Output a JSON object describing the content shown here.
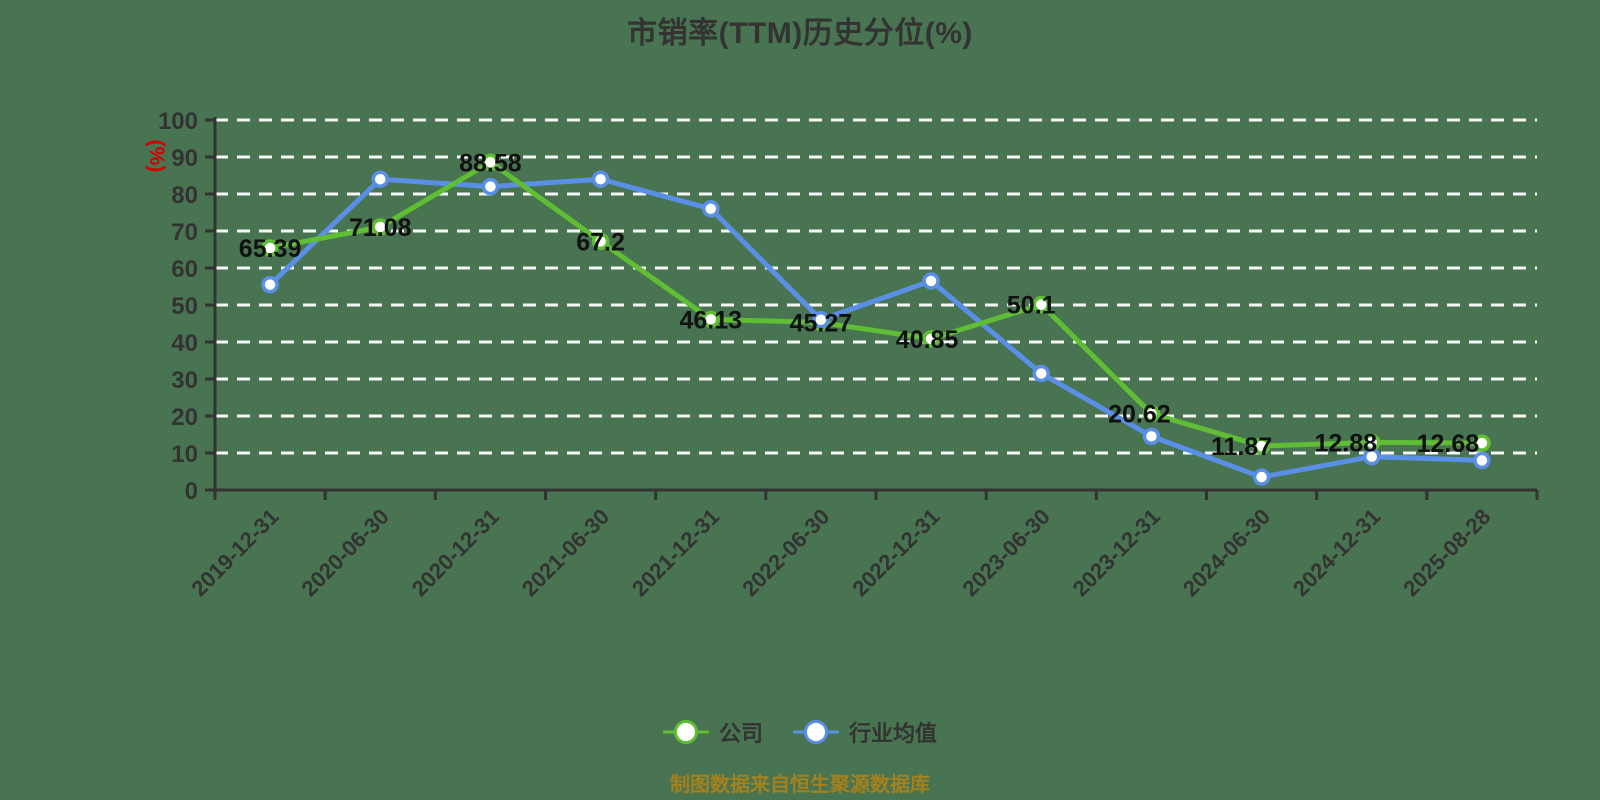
{
  "page": {
    "title": "市销率(TTM)历史分位(%)",
    "source_note": "制图数据来自恒生聚源数据库"
  },
  "y_axis": {
    "unit_label": "(%)"
  },
  "legend": {
    "items": [
      {
        "label": "公司",
        "color": "#5fbe33"
      },
      {
        "label": "行业均值",
        "color": "#5a8fe8"
      }
    ]
  },
  "chart_data": {
    "type": "line",
    "title": "市销率(TTM)历史分位(%)",
    "xlabel": "",
    "ylabel": "(%)",
    "ylim": [
      0,
      100
    ],
    "y_ticks": [
      0,
      10,
      20,
      30,
      40,
      50,
      60,
      70,
      80,
      90,
      100
    ],
    "grid": "horizontal-dashed-white",
    "legend_position": "bottom",
    "categories": [
      "2019-12-31",
      "2020-06-30",
      "2020-12-31",
      "2021-06-30",
      "2021-12-31",
      "2022-06-30",
      "2022-12-31",
      "2023-06-30",
      "2023-12-31",
      "2024-06-30",
      "2024-12-31",
      "2025-08-28"
    ],
    "series": [
      {
        "name": "公司",
        "color": "#5fbe33",
        "values": [
          65.39,
          71.08,
          88.58,
          67.2,
          46.13,
          45.27,
          40.85,
          50.1,
          20.62,
          11.87,
          12.88,
          12.68
        ],
        "point_labels": [
          "65.39",
          "71.08",
          "88.58",
          "67.2",
          "46.13",
          "45.27",
          "40.85",
          "50.1",
          "20.62",
          "11.87",
          "12.88",
          "12.68"
        ]
      },
      {
        "name": "行业均值",
        "color": "#5a8fe8",
        "values": [
          55.5,
          84,
          82,
          84,
          76,
          46,
          56.5,
          31.5,
          14.5,
          3.5,
          9,
          8
        ]
      }
    ]
  },
  "style": {
    "background": "#497451",
    "axis_color": "#333333",
    "grid_color": "#ffffff",
    "data_label_color": "#111111",
    "tick_label_color": "#333333",
    "unit_label_color": "#d40000",
    "title_color": "#333333",
    "source_note_color": "#a5811d",
    "marker_fill": "#ffffff"
  }
}
